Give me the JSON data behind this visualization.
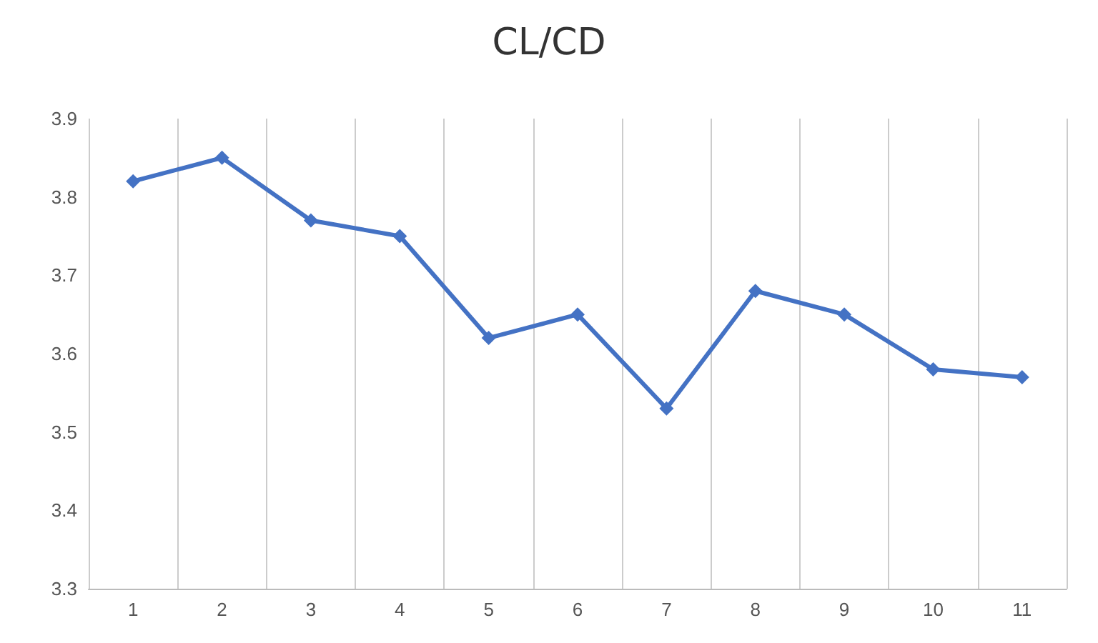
{
  "chart_data": {
    "type": "line",
    "title": "CL/CD",
    "categories": [
      "1",
      "2",
      "3",
      "4",
      "5",
      "6",
      "7",
      "8",
      "9",
      "10",
      "11"
    ],
    "series": [
      {
        "color": "#4472c4",
        "values": [
          3.82,
          3.85,
          3.77,
          3.75,
          3.62,
          3.65,
          3.53,
          3.68,
          3.65,
          3.58,
          3.57
        ]
      }
    ],
    "ylim": [
      3.3,
      3.9
    ],
    "yticks": [
      3.3,
      3.4,
      3.5,
      3.6,
      3.7,
      3.8,
      3.9
    ],
    "grid": "x",
    "marker": "diamond",
    "line_style": "solid"
  }
}
